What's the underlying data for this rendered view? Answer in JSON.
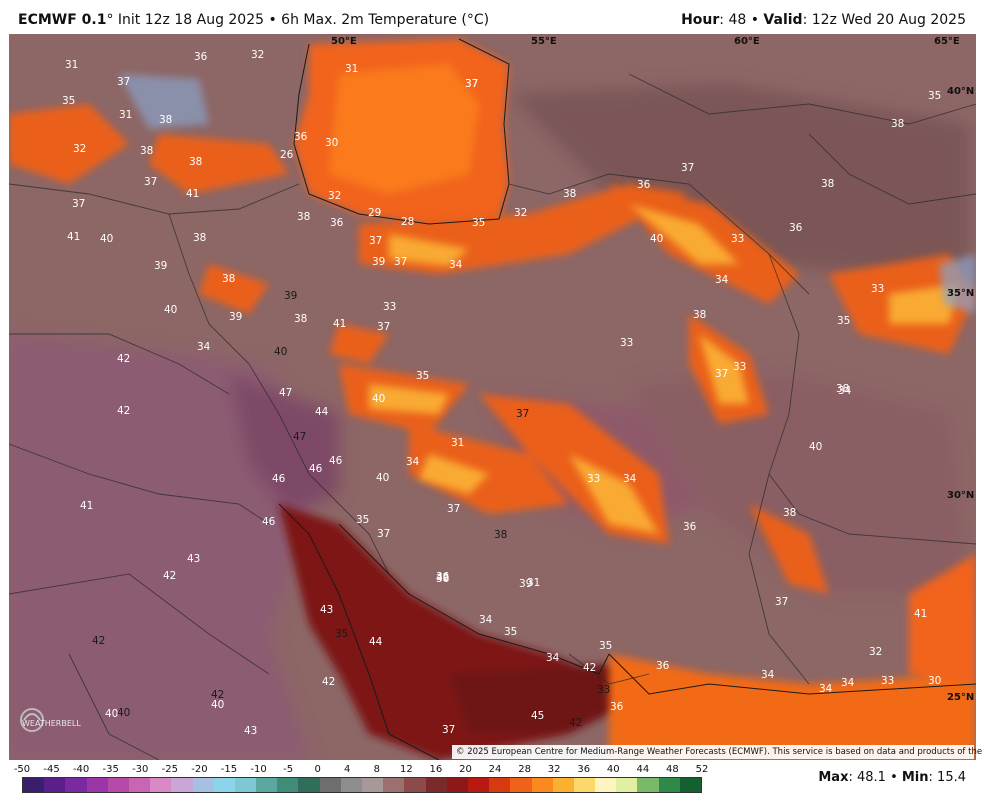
{
  "header": {
    "model": "ECMWF 0.1",
    "degree": "°",
    "init": " Init 12z 18 Aug 2025 • 6h Max. 2m Temperature (°C)",
    "hour_label": "Hour",
    "hour_value": ": 48 • ",
    "valid_label": "Valid",
    "valid_value": ": 12z Wed 20 Aug 2025"
  },
  "map": {
    "lon_labels": [
      "50°E",
      "55°E",
      "60°E",
      "65°E"
    ],
    "lat_labels": [
      "40°N",
      "35°N",
      "30°N",
      "25°N"
    ],
    "temperature_labels": [
      "31",
      "36",
      "32",
      "31",
      "37",
      "37",
      "35",
      "31",
      "38",
      "32",
      "38",
      "37",
      "38",
      "41",
      "37",
      "41",
      "40",
      "39",
      "38",
      "38",
      "39",
      "38",
      "39",
      "40",
      "42",
      "34",
      "40",
      "47",
      "42",
      "44",
      "47",
      "46",
      "46",
      "46",
      "40",
      "41",
      "46",
      "35",
      "37",
      "43",
      "42",
      "42",
      "40",
      "43",
      "35",
      "44",
      "42",
      "42",
      "40",
      "40",
      "43",
      "37",
      "45",
      "42",
      "36",
      "33",
      "42",
      "35",
      "34",
      "36",
      "35",
      "34",
      "36",
      "31",
      "34",
      "34",
      "34",
      "33",
      "30",
      "32",
      "41",
      "37",
      "42",
      "36",
      "39",
      "38",
      "36",
      "38",
      "37",
      "34",
      "33",
      "34",
      "31",
      "37",
      "40",
      "38",
      "33",
      "36",
      "38",
      "38",
      "35",
      "36",
      "28",
      "29",
      "32",
      "30",
      "26",
      "36",
      "37",
      "35",
      "32",
      "38",
      "37",
      "40",
      "33",
      "34",
      "35",
      "38",
      "33",
      "37",
      "33",
      "34",
      "35",
      "40",
      "41",
      "39",
      "37",
      "33",
      "37",
      "38",
      "36",
      "37",
      "34"
    ],
    "credit": "© 2025 European Centre for Medium-Range Weather Forecasts (ECMWF). This service is based on data and products of the ECMWF."
  },
  "logo": {
    "text": "WEATHERBELL"
  },
  "colorbar": {
    "ticks": [
      "-50",
      "-45",
      "-40",
      "-35",
      "-30",
      "-25",
      "-20",
      "-15",
      "-10",
      "-5",
      "0",
      "4",
      "8",
      "12",
      "16",
      "20",
      "24",
      "28",
      "32",
      "36",
      "40",
      "44",
      "48",
      "52"
    ],
    "colors": [
      "#3b1d6e",
      "#5a1f8a",
      "#7a2a9e",
      "#9b36a8",
      "#b64aa8",
      "#c966b4",
      "#d98ac6",
      "#c8a6d6",
      "#a6c0e4",
      "#8cd4ec",
      "#7ec8d4",
      "#5aa8a0",
      "#3f8c78",
      "#2f6e5a",
      "#6e6e6e",
      "#8e8e8e",
      "#a89898",
      "#9c7070",
      "#8c4a4a",
      "#7a2a2a",
      "#8e1818",
      "#b81a12",
      "#d83a10",
      "#f0621a",
      "#fa8a1e",
      "#fcb030",
      "#fcd86a",
      "#fef4c0",
      "#e0f0a0",
      "#7ab86a",
      "#2f8a4a",
      "#136030"
    ]
  },
  "stats": {
    "max_label": "Max",
    "max_value": "48.1",
    "sep": " • ",
    "min_label": "Min",
    "min_value": "15.4"
  }
}
